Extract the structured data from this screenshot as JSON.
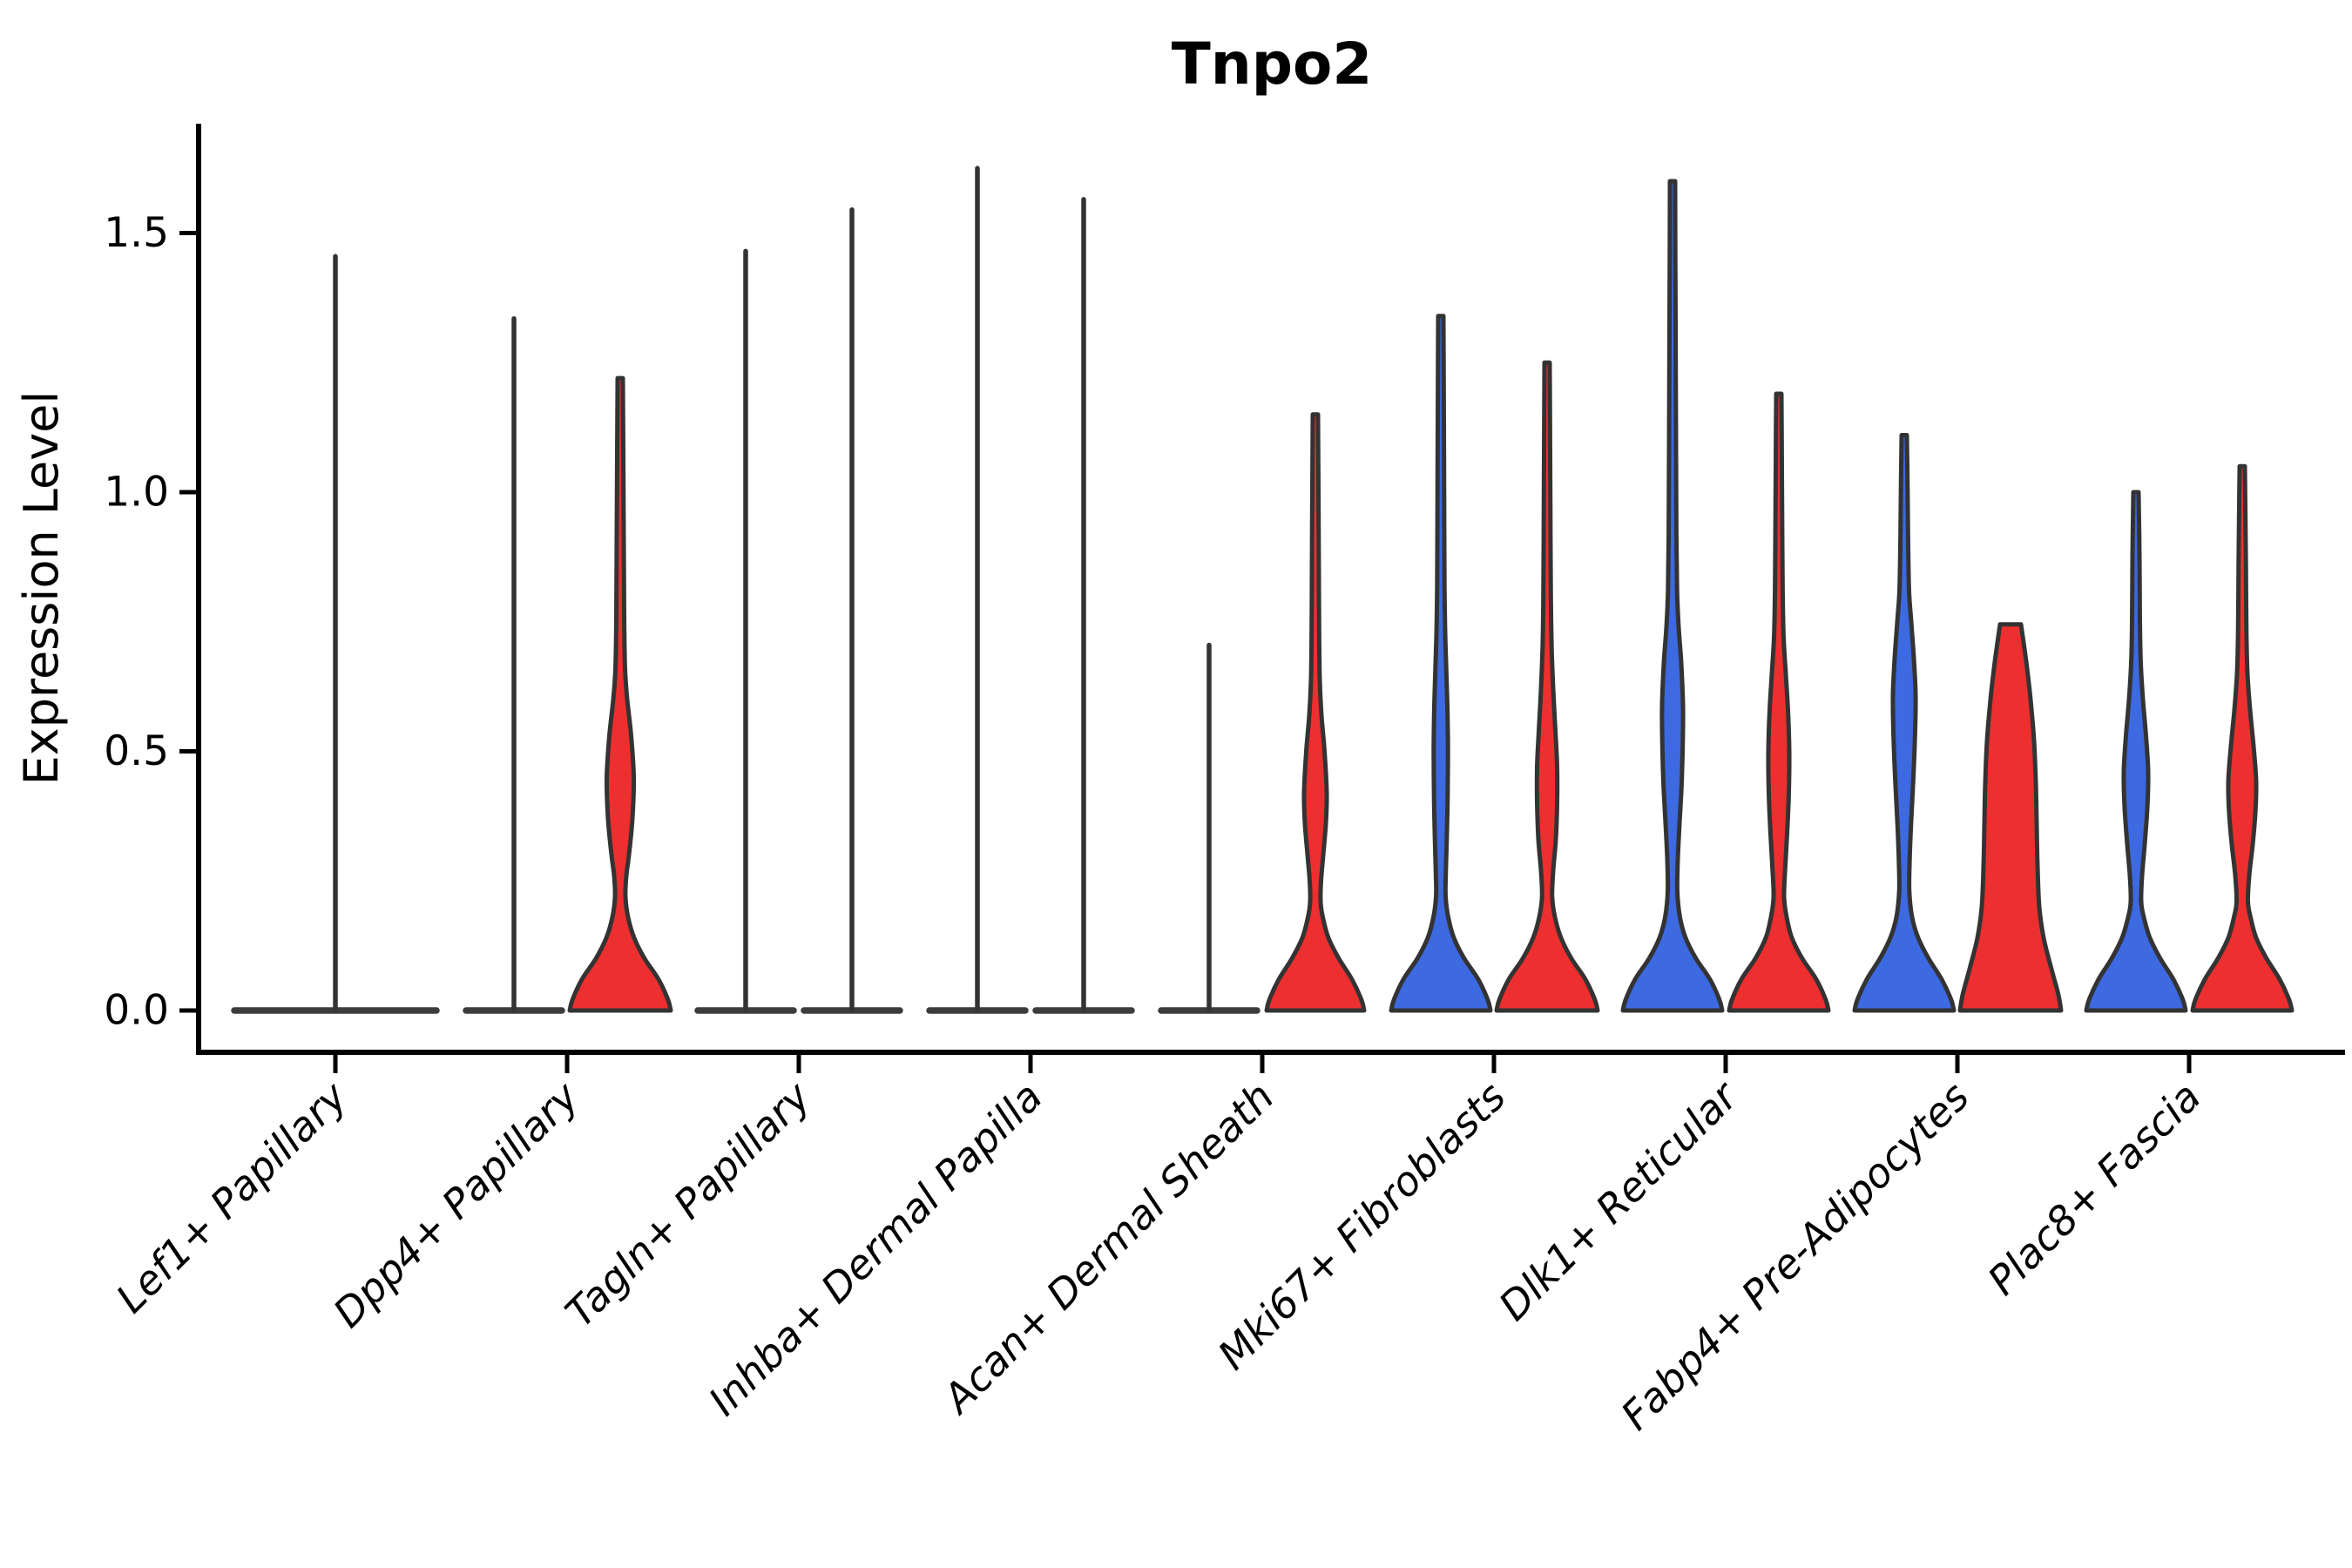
{
  "title": "Tnpo2",
  "y_axis": {
    "label": "Expression Level",
    "tick_labels": [
      "0.0",
      "0.5",
      "1.0",
      "1.5"
    ]
  },
  "categories": [
    "Lef1+ Papillary",
    "Dpp4+ Papillary",
    "Tagln+ Papillary",
    "Inhba+ Dermal Papilla",
    "Acan+ Dermal Sheath",
    "Mki67+ Fibroblasts",
    "Dlk1+ Reticular",
    "Fabp4+ Pre-Adipocytes",
    "Plac8+ Fascia"
  ],
  "colors": {
    "split_left_blue": "#3D69E1",
    "split_right_red": "#EE2F2F",
    "violin_outline": "#333333",
    "collapsed_line": "#3C3C3C",
    "axis": "#000000"
  },
  "chart_data": {
    "type": "violin",
    "title": "Tnpo2",
    "xlabel": "",
    "ylabel": "Expression Level",
    "ylim": [
      -0.085,
      1.71
    ],
    "yticks": [
      0,
      0.5,
      1.0,
      1.5
    ],
    "grid": false,
    "legend": "none",
    "split": {
      "left_color_hex": "#3D69E1",
      "right_color_hex": "#EE2F2F"
    },
    "categories": [
      "Lef1+ Papillary",
      "Dpp4+ Papillary",
      "Tagln+ Papillary",
      "Inhba+ Dermal Papilla",
      "Acan+ Dermal Sheath",
      "Mki67+ Fibroblasts",
      "Dlk1+ Reticular",
      "Fabp4+ Pre-Adipocytes",
      "Plac8+ Fascia"
    ],
    "violins": [
      {
        "category_index": 0,
        "category": "Lef1+ Papillary",
        "side": "center",
        "color": "none",
        "shape": "collapsed-line",
        "max_expression": 1.46,
        "half_width": 121
      },
      {
        "category_index": 1,
        "category": "Dpp4+ Papillary",
        "side": "left",
        "color": "blue",
        "shape": "collapsed-line",
        "max_expression": 1.34,
        "half_width": 60
      },
      {
        "category_index": 1,
        "category": "Dpp4+ Papillary",
        "side": "right",
        "color": "red",
        "shape": "body",
        "max_expression": 1.22,
        "profile": [
          [
            0,
            58
          ],
          [
            0.02,
            55
          ],
          [
            0.06,
            44
          ],
          [
            0.1,
            28
          ],
          [
            0.14,
            16
          ],
          [
            0.18,
            9
          ],
          [
            0.22,
            6
          ],
          [
            0.26,
            7
          ],
          [
            0.3,
            10
          ],
          [
            0.37,
            14
          ],
          [
            0.45,
            15.5
          ],
          [
            0.53,
            12.5
          ],
          [
            0.6,
            8
          ],
          [
            0.66,
            5.5
          ],
          [
            0.76,
            4.5
          ],
          [
            0.92,
            4
          ],
          [
            1.08,
            3.5
          ],
          [
            1.22,
            3
          ]
        ]
      },
      {
        "category_index": 2,
        "category": "Tagln+ Papillary",
        "side": "left",
        "color": "blue",
        "shape": "collapsed-line",
        "max_expression": 1.47,
        "half_width": 60
      },
      {
        "category_index": 2,
        "category": "Tagln+ Papillary",
        "side": "right",
        "color": "red",
        "shape": "collapsed-line",
        "max_expression": 1.55,
        "half_width": 60
      },
      {
        "category_index": 3,
        "category": "Inhba+ Dermal Papilla",
        "side": "left",
        "color": "blue",
        "shape": "collapsed-line",
        "max_expression": 1.63,
        "half_width": 60
      },
      {
        "category_index": 3,
        "category": "Inhba+ Dermal Papilla",
        "side": "right",
        "color": "red",
        "shape": "collapsed-line",
        "max_expression": 1.57,
        "half_width": 60
      },
      {
        "category_index": 4,
        "category": "Acan+ Dermal Sheath",
        "side": "left",
        "color": "blue",
        "shape": "collapsed-line",
        "max_expression": 0.71,
        "half_width": 60
      },
      {
        "category_index": 4,
        "category": "Acan+ Dermal Sheath",
        "side": "right",
        "color": "red",
        "shape": "body",
        "max_expression": 1.15,
        "profile": [
          [
            0,
            56
          ],
          [
            0.02,
            53
          ],
          [
            0.06,
            42
          ],
          [
            0.1,
            27
          ],
          [
            0.14,
            15
          ],
          [
            0.18,
            8.5
          ],
          [
            0.21,
            6
          ],
          [
            0.25,
            6.5
          ],
          [
            0.3,
            9
          ],
          [
            0.36,
            12
          ],
          [
            0.42,
            13
          ],
          [
            0.5,
            10.5
          ],
          [
            0.57,
            7
          ],
          [
            0.64,
            5
          ],
          [
            0.76,
            4.2
          ],
          [
            0.95,
            3.7
          ],
          [
            1.15,
            3
          ]
        ]
      },
      {
        "category_index": 5,
        "category": "Mki67+ Fibroblasts",
        "side": "left",
        "color": "blue",
        "shape": "body",
        "max_expression": 1.34,
        "profile": [
          [
            0,
            57
          ],
          [
            0.02,
            54
          ],
          [
            0.06,
            43
          ],
          [
            0.1,
            27
          ],
          [
            0.14,
            15
          ],
          [
            0.18,
            8.5
          ],
          [
            0.22,
            5.5
          ],
          [
            0.27,
            5.8
          ],
          [
            0.33,
            6.8
          ],
          [
            0.41,
            7.8
          ],
          [
            0.5,
            8.2
          ],
          [
            0.58,
            7.6
          ],
          [
            0.66,
            6.2
          ],
          [
            0.73,
            5
          ],
          [
            0.82,
            4.2
          ],
          [
            1.0,
            3.8
          ],
          [
            1.18,
            3.4
          ],
          [
            1.34,
            3
          ]
        ]
      },
      {
        "category_index": 5,
        "category": "Mki67+ Fibroblasts",
        "side": "right",
        "color": "red",
        "shape": "body",
        "max_expression": 1.25,
        "profile": [
          [
            0,
            58
          ],
          [
            0.02,
            55
          ],
          [
            0.06,
            44
          ],
          [
            0.1,
            28
          ],
          [
            0.14,
            16
          ],
          [
            0.18,
            9
          ],
          [
            0.22,
            5.8
          ],
          [
            0.27,
            7
          ],
          [
            0.33,
            10
          ],
          [
            0.4,
            11.5
          ],
          [
            0.47,
            11.5
          ],
          [
            0.54,
            9.5
          ],
          [
            0.62,
            7
          ],
          [
            0.7,
            5.2
          ],
          [
            0.8,
            4.3
          ],
          [
            0.96,
            3.8
          ],
          [
            1.11,
            3.4
          ],
          [
            1.25,
            3
          ]
        ]
      },
      {
        "category_index": 6,
        "category": "Dlk1+ Reticular",
        "side": "left",
        "color": "blue",
        "shape": "body",
        "max_expression": 1.6,
        "profile": [
          [
            0,
            57
          ],
          [
            0.02,
            54
          ],
          [
            0.06,
            43
          ],
          [
            0.1,
            27
          ],
          [
            0.14,
            15
          ],
          [
            0.18,
            8.5
          ],
          [
            0.23,
            5.5
          ],
          [
            0.29,
            6
          ],
          [
            0.36,
            8
          ],
          [
            0.44,
            10.5
          ],
          [
            0.52,
            11.8
          ],
          [
            0.59,
            12
          ],
          [
            0.67,
            10
          ],
          [
            0.74,
            7
          ],
          [
            0.81,
            5.2
          ],
          [
            0.92,
            4.4
          ],
          [
            1.08,
            4
          ],
          [
            1.28,
            3.6
          ],
          [
            1.46,
            3.2
          ],
          [
            1.6,
            3
          ]
        ]
      },
      {
        "category_index": 6,
        "category": "Dlk1+ Reticular",
        "side": "right",
        "color": "red",
        "shape": "body",
        "max_expression": 1.19,
        "profile": [
          [
            0,
            57
          ],
          [
            0.02,
            54
          ],
          [
            0.06,
            43
          ],
          [
            0.1,
            27
          ],
          [
            0.14,
            15
          ],
          [
            0.18,
            9
          ],
          [
            0.22,
            6
          ],
          [
            0.28,
            7.5
          ],
          [
            0.34,
            9.5
          ],
          [
            0.42,
            11.5
          ],
          [
            0.5,
            12
          ],
          [
            0.58,
            10.5
          ],
          [
            0.65,
            8
          ],
          [
            0.72,
            5.5
          ],
          [
            0.81,
            4.4
          ],
          [
            0.96,
            3.8
          ],
          [
            1.08,
            3.4
          ],
          [
            1.19,
            3
          ]
        ]
      },
      {
        "category_index": 7,
        "category": "Fabp4+ Pre-Adipocytes",
        "side": "left",
        "color": "blue",
        "shape": "body",
        "max_expression": 1.11,
        "profile": [
          [
            0,
            57
          ],
          [
            0.02,
            54
          ],
          [
            0.06,
            43
          ],
          [
            0.1,
            28
          ],
          [
            0.14,
            16
          ],
          [
            0.18,
            9
          ],
          [
            0.23,
            5.8
          ],
          [
            0.29,
            6.2
          ],
          [
            0.36,
            7.8
          ],
          [
            0.45,
            10.5
          ],
          [
            0.54,
            12.5
          ],
          [
            0.61,
            13
          ],
          [
            0.68,
            11
          ],
          [
            0.75,
            8
          ],
          [
            0.81,
            5.5
          ],
          [
            0.91,
            4.4
          ],
          [
            1.01,
            3.8
          ],
          [
            1.11,
            3
          ]
        ]
      },
      {
        "category_index": 7,
        "category": "Fabp4+ Pre-Adipocytes",
        "side": "right",
        "color": "red",
        "shape": "flat-top-body",
        "max_expression": 0.75,
        "profile": [
          [
            0,
            58
          ],
          [
            0.03,
            55
          ],
          [
            0.08,
            47
          ],
          [
            0.14,
            38
          ],
          [
            0.2,
            33
          ],
          [
            0.28,
            31
          ],
          [
            0.36,
            30
          ],
          [
            0.44,
            29
          ],
          [
            0.52,
            27
          ],
          [
            0.6,
            23
          ],
          [
            0.66,
            19
          ],
          [
            0.71,
            15
          ],
          [
            0.745,
            12
          ]
        ]
      },
      {
        "category_index": 8,
        "category": "Plac8+ Fascia",
        "side": "left",
        "color": "blue",
        "shape": "body",
        "max_expression": 1.0,
        "profile": [
          [
            0,
            57
          ],
          [
            0.02,
            54
          ],
          [
            0.06,
            43
          ],
          [
            0.1,
            28
          ],
          [
            0.14,
            16
          ],
          [
            0.18,
            9
          ],
          [
            0.21,
            6
          ],
          [
            0.26,
            7
          ],
          [
            0.32,
            10
          ],
          [
            0.39,
            13
          ],
          [
            0.46,
            14
          ],
          [
            0.53,
            11.5
          ],
          [
            0.6,
            8
          ],
          [
            0.67,
            5.5
          ],
          [
            0.75,
            4.5
          ],
          [
            0.88,
            4
          ],
          [
            1.0,
            3
          ]
        ]
      },
      {
        "category_index": 8,
        "category": "Plac8+ Fascia",
        "side": "right",
        "color": "red",
        "shape": "body",
        "max_expression": 1.05,
        "profile": [
          [
            0,
            57
          ],
          [
            0.02,
            54
          ],
          [
            0.06,
            43
          ],
          [
            0.1,
            28
          ],
          [
            0.14,
            16
          ],
          [
            0.18,
            9.5
          ],
          [
            0.21,
            6.5
          ],
          [
            0.26,
            8
          ],
          [
            0.32,
            12
          ],
          [
            0.38,
            15
          ],
          [
            0.44,
            16
          ],
          [
            0.51,
            13
          ],
          [
            0.58,
            9
          ],
          [
            0.65,
            6
          ],
          [
            0.73,
            4.8
          ],
          [
            0.86,
            4.2
          ],
          [
            0.96,
            3.6
          ],
          [
            1.05,
            3
          ]
        ]
      }
    ]
  }
}
